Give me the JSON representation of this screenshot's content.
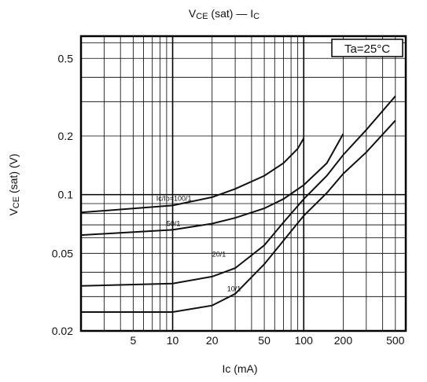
{
  "chart_data": {
    "type": "line",
    "title": {
      "main": "V",
      "sub": "CE",
      "rest": " (sat) — I",
      "sub2": "C"
    },
    "xlabel": "Ic (mA)",
    "ylabel": {
      "main": "V",
      "sub": "CE",
      "rest": " (sat) (V)"
    },
    "x_scale": "log",
    "y_scale": "log",
    "xlim": [
      2,
      600
    ],
    "ylim": [
      0.02,
      0.65
    ],
    "x_tick_labels": [
      {
        "v": 5,
        "t": "5"
      },
      {
        "v": 10,
        "t": "10"
      },
      {
        "v": 20,
        "t": "20"
      },
      {
        "v": 50,
        "t": "50"
      },
      {
        "v": 100,
        "t": "100"
      },
      {
        "v": 200,
        "t": "200"
      },
      {
        "v": 500,
        "t": "500"
      }
    ],
    "y_tick_labels": [
      {
        "v": 0.5,
        "t": "0.5"
      },
      {
        "v": 0.2,
        "t": "0.2"
      },
      {
        "v": 0.1,
        "t": "0.1"
      },
      {
        "v": 0.05,
        "t": "0.05"
      },
      {
        "v": 0.02,
        "t": "0.02"
      }
    ],
    "grid": true,
    "annotation": "Ta=25°C",
    "series": [
      {
        "name": "Ic/Ib=100/1",
        "values": [
          [
            2,
            0.081
          ],
          [
            10,
            0.088
          ],
          [
            20,
            0.097
          ],
          [
            30,
            0.107
          ],
          [
            50,
            0.125
          ],
          [
            70,
            0.145
          ],
          [
            90,
            0.172
          ],
          [
            100,
            0.195
          ]
        ]
      },
      {
        "name": "50/1",
        "values": [
          [
            2,
            0.062
          ],
          [
            10,
            0.066
          ],
          [
            20,
            0.071
          ],
          [
            30,
            0.076
          ],
          [
            50,
            0.085
          ],
          [
            70,
            0.095
          ],
          [
            100,
            0.112
          ],
          [
            150,
            0.145
          ],
          [
            200,
            0.205
          ]
        ]
      },
      {
        "name": "20/1",
        "values": [
          [
            2,
            0.034
          ],
          [
            10,
            0.035
          ],
          [
            20,
            0.038
          ],
          [
            30,
            0.042
          ],
          [
            50,
            0.055
          ],
          [
            70,
            0.072
          ],
          [
            100,
            0.095
          ],
          [
            150,
            0.125
          ],
          [
            200,
            0.16
          ],
          [
            300,
            0.215
          ],
          [
            500,
            0.32
          ]
        ]
      },
      {
        "name": "10/1",
        "values": [
          [
            2,
            0.025
          ],
          [
            10,
            0.025
          ],
          [
            20,
            0.027
          ],
          [
            30,
            0.031
          ],
          [
            50,
            0.044
          ],
          [
            70,
            0.058
          ],
          [
            100,
            0.078
          ],
          [
            150,
            0.102
          ],
          [
            200,
            0.128
          ],
          [
            300,
            0.165
          ],
          [
            500,
            0.24
          ]
        ]
      }
    ],
    "series_labels": [
      {
        "text": "Ic/Ib=100/1",
        "x": 7.5,
        "y": 0.093
      },
      {
        "text": "50/1",
        "x": 9.0,
        "y": 0.069
      },
      {
        "text": "20/1",
        "x": 20,
        "y": 0.048
      },
      {
        "text": "10/1",
        "x": 26,
        "y": 0.032
      }
    ]
  }
}
